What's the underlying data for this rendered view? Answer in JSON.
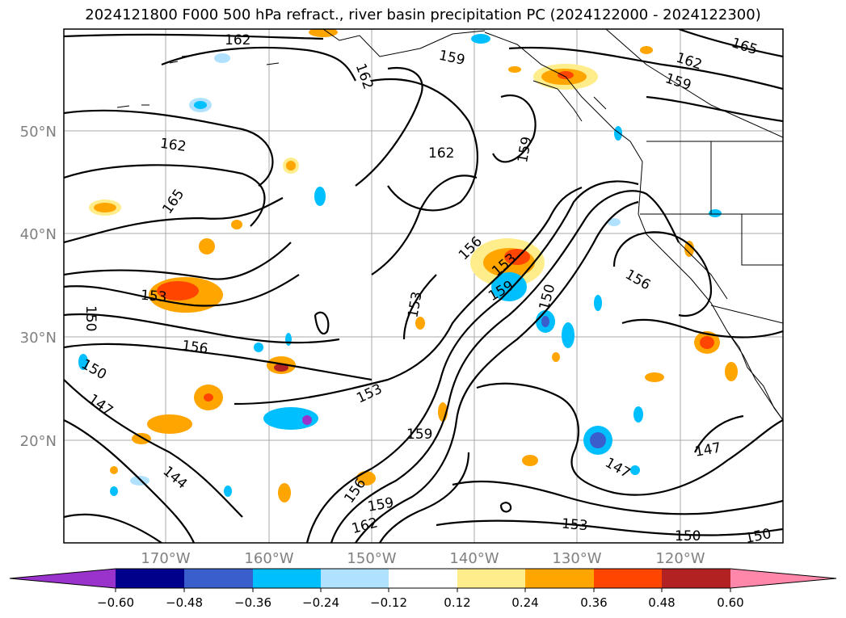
{
  "title": "2024121800 F000 500 hPa refract., river basin precipitation PC (2024122000 - 2024122300)",
  "map": {
    "lon_ticks": [
      "170°W",
      "160°W",
      "150°W",
      "140°W",
      "130°W",
      "120°W"
    ],
    "lat_ticks": [
      "50°N",
      "40°N",
      "30°N",
      "20°N"
    ],
    "contour_labels": [
      "162",
      "162",
      "159",
      "162",
      "159",
      "165",
      "162",
      "162",
      "159",
      "165",
      "153",
      "150",
      "156",
      "150",
      "147",
      "144",
      "153",
      "156",
      "153",
      "150",
      "159",
      "159",
      "156",
      "159",
      "162",
      "153",
      "150",
      "150",
      "147",
      "147",
      "156",
      "153"
    ]
  },
  "colorbar": {
    "ticks": [
      "−0.60",
      "−0.48",
      "−0.36",
      "−0.24",
      "−0.12",
      "0.12",
      "0.24",
      "0.36",
      "0.48",
      "0.60"
    ],
    "colors": [
      "#9933cc",
      "#00008b",
      "#3a5fcd",
      "#00bfff",
      "#b0e2ff",
      "#ffffff",
      "#ffec8b",
      "#ffa500",
      "#ff4500",
      "#b22222",
      "#ff88aa"
    ]
  },
  "chart_data": {
    "type": "heatmap",
    "title": "2024121800 F000 500 hPa refract., river basin precipitation PC (2024122000 - 2024122300)",
    "x_ticks": [
      "170°W",
      "160°W",
      "150°W",
      "140°W",
      "130°W",
      "120°W"
    ],
    "y_ticks": [
      "50°N",
      "40°N",
      "30°N",
      "20°N"
    ],
    "contour_levels": [
      144,
      147,
      150,
      153,
      156,
      159,
      162,
      165
    ],
    "colorbar_levels": [
      -0.6,
      -0.48,
      -0.36,
      -0.24,
      -0.12,
      0.12,
      0.24,
      0.36,
      0.48,
      0.6
    ]
  }
}
